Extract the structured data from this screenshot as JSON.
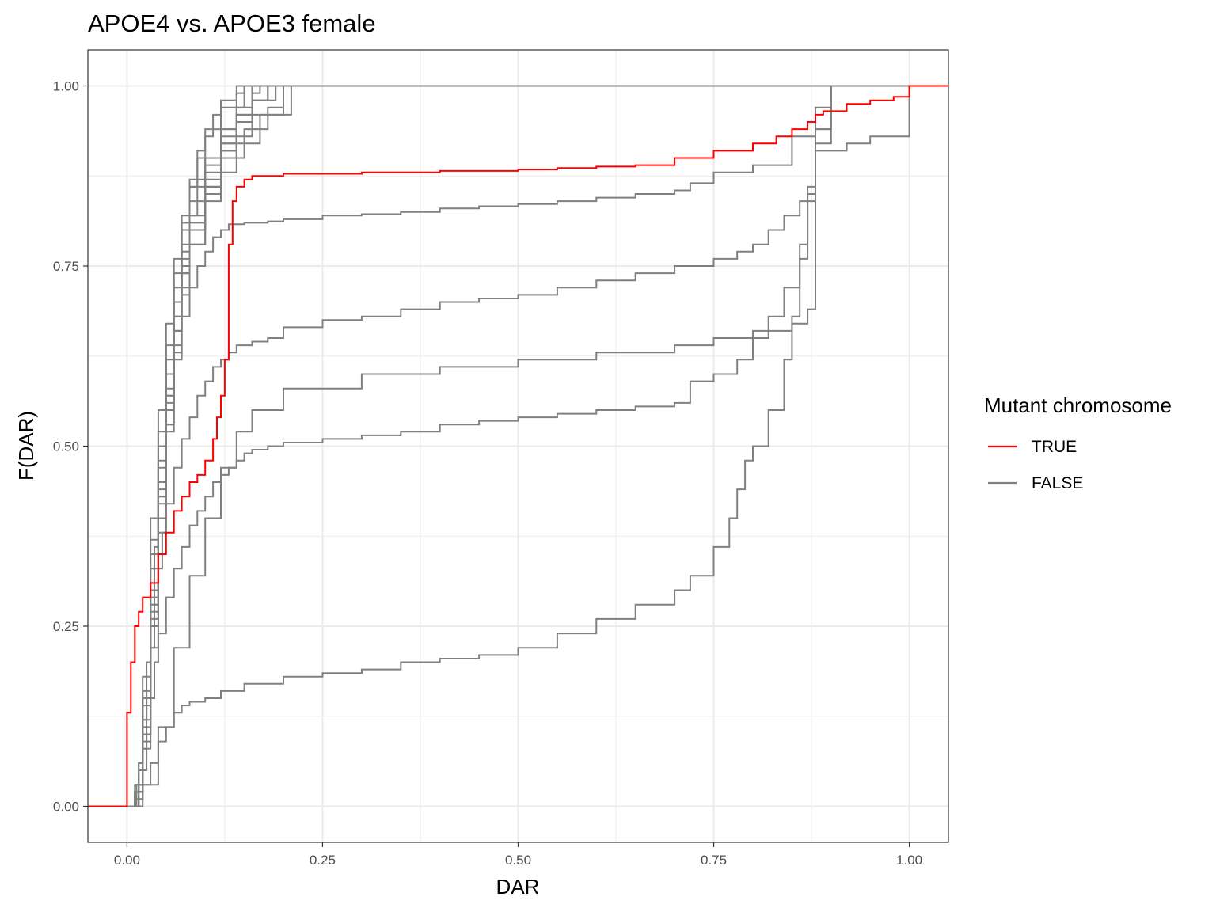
{
  "chart_data": {
    "type": "line",
    "step": true,
    "title": "APOE4 vs. APOE3 female",
    "xlabel": "DAR",
    "ylabel": "F(DAR)",
    "xlim": [
      -0.05,
      1.05
    ],
    "ylim": [
      -0.05,
      1.05
    ],
    "x_ticks": [
      0,
      0.25,
      0.5,
      0.75,
      1
    ],
    "x_tick_labels": [
      "0.00",
      "0.25",
      "0.50",
      "0.75",
      "1.00"
    ],
    "y_ticks": [
      0,
      0.25,
      0.5,
      0.75,
      1
    ],
    "y_tick_labels": [
      "0.00",
      "0.25",
      "0.50",
      "0.75",
      "1.00"
    ],
    "grid": true,
    "legend": {
      "title": "Mutant chromosome",
      "position": "right",
      "entries": [
        {
          "label": "TRUE",
          "color": "#ff0000"
        },
        {
          "label": "FALSE",
          "color": "#808080"
        }
      ]
    },
    "series": [
      {
        "group": "TRUE",
        "color": "#ff0000",
        "x": [
          -0.05,
          0.0,
          0.0,
          0.005,
          0.005,
          0.01,
          0.01,
          0.015,
          0.02,
          0.03,
          0.04,
          0.05,
          0.06,
          0.07,
          0.08,
          0.09,
          0.1,
          0.11,
          0.115,
          0.12,
          0.125,
          0.13,
          0.135,
          0.14,
          0.15,
          0.16,
          0.2,
          0.3,
          0.4,
          0.5,
          0.55,
          0.6,
          0.65,
          0.7,
          0.75,
          0.8,
          0.83,
          0.85,
          0.87,
          0.88,
          0.89,
          0.92,
          0.95,
          0.98,
          1.0,
          1.05
        ],
        "y": [
          0.0,
          0.0,
          0.13,
          0.13,
          0.2,
          0.22,
          0.25,
          0.27,
          0.29,
          0.31,
          0.35,
          0.38,
          0.41,
          0.43,
          0.45,
          0.46,
          0.48,
          0.51,
          0.54,
          0.57,
          0.62,
          0.78,
          0.84,
          0.86,
          0.87,
          0.875,
          0.878,
          0.88,
          0.882,
          0.884,
          0.886,
          0.888,
          0.89,
          0.9,
          0.91,
          0.92,
          0.93,
          0.94,
          0.95,
          0.96,
          0.965,
          0.975,
          0.98,
          0.985,
          1.0,
          1.0
        ]
      },
      {
        "group": "FALSE",
        "color": "#808080",
        "x": [
          -0.05,
          0.005,
          0.01,
          0.02,
          0.03,
          0.04,
          0.05,
          0.06,
          0.07,
          0.08,
          0.09,
          0.1,
          0.11,
          0.12,
          0.14,
          1.05
        ],
        "y": [
          0.0,
          0.0,
          0.02,
          0.15,
          0.35,
          0.5,
          0.62,
          0.72,
          0.8,
          0.86,
          0.9,
          0.93,
          0.96,
          0.98,
          1.0,
          1.0
        ]
      },
      {
        "group": "FALSE",
        "color": "#808080",
        "x": [
          -0.05,
          0.005,
          0.01,
          0.02,
          0.03,
          0.04,
          0.05,
          0.06,
          0.07,
          0.08,
          0.09,
          0.1,
          0.12,
          0.14,
          0.16,
          1.05
        ],
        "y": [
          0.0,
          0.0,
          0.01,
          0.1,
          0.28,
          0.44,
          0.57,
          0.68,
          0.76,
          0.82,
          0.87,
          0.9,
          0.94,
          0.97,
          1.0,
          1.0
        ]
      },
      {
        "group": "FALSE",
        "color": "#808080",
        "x": [
          -0.05,
          0.005,
          0.01,
          0.02,
          0.03,
          0.04,
          0.05,
          0.06,
          0.07,
          0.08,
          0.1,
          0.12,
          0.14,
          0.16,
          0.18,
          1.05
        ],
        "y": [
          0.0,
          0.0,
          0.02,
          0.12,
          0.3,
          0.47,
          0.6,
          0.7,
          0.77,
          0.82,
          0.88,
          0.92,
          0.95,
          0.98,
          1.0,
          1.0
        ]
      },
      {
        "group": "FALSE",
        "color": "#808080",
        "x": [
          -0.05,
          0.005,
          0.012,
          0.02,
          0.03,
          0.04,
          0.05,
          0.06,
          0.07,
          0.08,
          0.1,
          0.12,
          0.15,
          0.18,
          0.2,
          1.05
        ],
        "y": [
          0.0,
          0.0,
          0.03,
          0.1,
          0.25,
          0.4,
          0.53,
          0.64,
          0.72,
          0.78,
          0.85,
          0.9,
          0.94,
          0.97,
          1.0,
          1.0
        ]
      },
      {
        "group": "FALSE",
        "color": "#808080",
        "x": [
          -0.05,
          0.005,
          0.01,
          0.02,
          0.03,
          0.04,
          0.05,
          0.06,
          0.07,
          0.08,
          0.1,
          0.12,
          0.14,
          0.17,
          0.21,
          1.05
        ],
        "y": [
          0.0,
          0.0,
          0.02,
          0.08,
          0.22,
          0.38,
          0.52,
          0.63,
          0.71,
          0.78,
          0.84,
          0.88,
          0.92,
          0.96,
          1.0,
          1.0
        ]
      },
      {
        "group": "FALSE",
        "color": "#808080",
        "x": [
          -0.05,
          0.005,
          0.01,
          0.02,
          0.03,
          0.04,
          0.05,
          0.06,
          0.07,
          0.08,
          0.1,
          0.12,
          0.14,
          0.16,
          0.19,
          1.05
        ],
        "y": [
          0.0,
          0.0,
          0.01,
          0.14,
          0.33,
          0.48,
          0.6,
          0.7,
          0.78,
          0.84,
          0.89,
          0.93,
          0.96,
          0.98,
          1.0,
          1.0
        ]
      },
      {
        "group": "FALSE",
        "color": "#808080",
        "x": [
          -0.05,
          0.005,
          0.01,
          0.02,
          0.03,
          0.04,
          0.05,
          0.06,
          0.07,
          0.08,
          0.09,
          0.1,
          0.12,
          0.14,
          0.15,
          1.05
        ],
        "y": [
          0.0,
          0.0,
          0.03,
          0.18,
          0.4,
          0.55,
          0.67,
          0.76,
          0.82,
          0.87,
          0.91,
          0.94,
          0.97,
          0.99,
          1.0,
          1.0
        ]
      },
      {
        "group": "FALSE",
        "color": "#808080",
        "x": [
          -0.05,
          0.005,
          0.012,
          0.02,
          0.03,
          0.04,
          0.05,
          0.06,
          0.07,
          0.08,
          0.1,
          0.12,
          0.14,
          0.16,
          0.18,
          1.05
        ],
        "y": [
          0.0,
          0.0,
          0.02,
          0.09,
          0.26,
          0.42,
          0.55,
          0.66,
          0.74,
          0.8,
          0.86,
          0.91,
          0.95,
          0.98,
          1.0,
          1.0
        ]
      },
      {
        "group": "FALSE",
        "color": "#808080",
        "x": [
          -0.05,
          0.005,
          0.01,
          0.02,
          0.03,
          0.04,
          0.05,
          0.06,
          0.07,
          0.08,
          0.1,
          0.12,
          0.14,
          0.16,
          0.17,
          1.05
        ],
        "y": [
          0.0,
          0.0,
          0.02,
          0.11,
          0.29,
          0.45,
          0.58,
          0.68,
          0.75,
          0.81,
          0.87,
          0.92,
          0.96,
          0.99,
          1.0,
          1.0
        ]
      },
      {
        "group": "FALSE",
        "color": "#808080",
        "x": [
          -0.05,
          0.005,
          0.01,
          0.02,
          0.03,
          0.04,
          0.05,
          0.06,
          0.07,
          0.08,
          0.1,
          0.12,
          0.14,
          0.16,
          0.2,
          1.05
        ],
        "y": [
          0.0,
          0.0,
          0.02,
          0.1,
          0.27,
          0.43,
          0.56,
          0.66,
          0.74,
          0.8,
          0.86,
          0.9,
          0.93,
          0.96,
          1.0,
          1.0
        ]
      },
      {
        "group": "FALSE",
        "color": "#808080",
        "x": [
          -0.05,
          0.008,
          0.015,
          0.02,
          0.03,
          0.04,
          0.05,
          0.06,
          0.07,
          0.08,
          0.1,
          0.12,
          0.14,
          0.15,
          1.05
        ],
        "y": [
          0.0,
          0.0,
          0.05,
          0.16,
          0.37,
          0.52,
          0.64,
          0.74,
          0.81,
          0.86,
          0.9,
          0.94,
          0.97,
          1.0,
          1.0
        ]
      },
      {
        "group": "FALSE",
        "color": "#808080",
        "x": [
          -0.05,
          0.005,
          0.01,
          0.015,
          0.02,
          0.03,
          0.04,
          0.05,
          0.06,
          0.07,
          0.08,
          0.1,
          0.12,
          0.14,
          0.16,
          1.05
        ],
        "y": [
          0.0,
          0.0,
          0.02,
          0.06,
          0.15,
          0.3,
          0.45,
          0.57,
          0.66,
          0.74,
          0.8,
          0.86,
          0.91,
          0.95,
          1.0,
          1.0
        ]
      },
      {
        "group": "FALSE",
        "color": "#808080",
        "x": [
          -0.05,
          0.005,
          0.01,
          0.015,
          0.02,
          0.025,
          0.03,
          0.035,
          0.04,
          0.05,
          0.06,
          0.07,
          0.08,
          0.09,
          0.1,
          0.11,
          0.12,
          0.13,
          0.15,
          0.18,
          0.2,
          0.25,
          0.3,
          0.35,
          0.4,
          0.45,
          0.5,
          0.55,
          0.6,
          0.65,
          0.7,
          0.72,
          0.75,
          0.8,
          0.85,
          0.88,
          0.9,
          1.05
        ],
        "y": [
          0.0,
          0.0,
          0.02,
          0.06,
          0.12,
          0.2,
          0.28,
          0.36,
          0.43,
          0.53,
          0.62,
          0.68,
          0.72,
          0.75,
          0.77,
          0.79,
          0.8,
          0.808,
          0.81,
          0.812,
          0.815,
          0.82,
          0.822,
          0.825,
          0.83,
          0.833,
          0.836,
          0.84,
          0.845,
          0.85,
          0.855,
          0.865,
          0.88,
          0.89,
          0.93,
          0.97,
          1.0,
          1.0
        ]
      },
      {
        "group": "FALSE",
        "color": "#808080",
        "x": [
          -0.05,
          0.01,
          0.015,
          0.02,
          0.025,
          0.03,
          0.035,
          0.04,
          0.045,
          0.05,
          0.06,
          0.07,
          0.08,
          0.09,
          0.1,
          0.11,
          0.12,
          0.13,
          0.14,
          0.16,
          0.18,
          0.2,
          0.25,
          0.3,
          0.35,
          0.4,
          0.45,
          0.5,
          0.55,
          0.6,
          0.65,
          0.7,
          0.75,
          0.78,
          0.8,
          0.82,
          0.84,
          0.86,
          0.87,
          0.88,
          0.9,
          1.05
        ],
        "y": [
          0.0,
          0.0,
          0.03,
          0.08,
          0.15,
          0.22,
          0.28,
          0.33,
          0.38,
          0.42,
          0.47,
          0.51,
          0.54,
          0.57,
          0.59,
          0.61,
          0.62,
          0.63,
          0.64,
          0.645,
          0.65,
          0.665,
          0.675,
          0.68,
          0.69,
          0.7,
          0.705,
          0.71,
          0.72,
          0.73,
          0.74,
          0.75,
          0.76,
          0.77,
          0.78,
          0.8,
          0.82,
          0.84,
          0.86,
          0.94,
          1.0,
          1.0
        ]
      },
      {
        "group": "FALSE",
        "color": "#808080",
        "x": [
          -0.05,
          0.01,
          0.015,
          0.02,
          0.025,
          0.03,
          0.035,
          0.04,
          0.05,
          0.06,
          0.07,
          0.08,
          0.09,
          0.1,
          0.11,
          0.12,
          0.13,
          0.14,
          0.15,
          0.16,
          0.18,
          0.2,
          0.25,
          0.3,
          0.35,
          0.4,
          0.45,
          0.5,
          0.55,
          0.6,
          0.65,
          0.7,
          0.72,
          0.75,
          0.78,
          0.8,
          0.82,
          0.84,
          0.86,
          0.87,
          0.88,
          0.9,
          1.05
        ],
        "y": [
          0.0,
          0.0,
          0.02,
          0.05,
          0.1,
          0.15,
          0.2,
          0.24,
          0.29,
          0.33,
          0.36,
          0.39,
          0.41,
          0.43,
          0.45,
          0.46,
          0.47,
          0.48,
          0.49,
          0.495,
          0.5,
          0.505,
          0.51,
          0.515,
          0.52,
          0.53,
          0.535,
          0.54,
          0.545,
          0.55,
          0.555,
          0.56,
          0.59,
          0.6,
          0.62,
          0.65,
          0.68,
          0.72,
          0.78,
          0.85,
          0.92,
          1.0,
          1.0
        ]
      },
      {
        "group": "FALSE",
        "color": "#808080",
        "x": [
          -0.05,
          0.01,
          0.015,
          0.02,
          0.03,
          0.04,
          0.05,
          0.06,
          0.07,
          0.08,
          0.1,
          0.12,
          0.15,
          0.2,
          0.25,
          0.3,
          0.35,
          0.4,
          0.45,
          0.5,
          0.55,
          0.6,
          0.65,
          0.7,
          0.72,
          0.75,
          0.77,
          0.78,
          0.79,
          0.8,
          0.82,
          0.84,
          0.85,
          0.86,
          0.87,
          0.88,
          0.9,
          1.05
        ],
        "y": [
          0.0,
          0.0,
          0.01,
          0.03,
          0.06,
          0.09,
          0.11,
          0.13,
          0.14,
          0.145,
          0.15,
          0.16,
          0.17,
          0.18,
          0.185,
          0.19,
          0.2,
          0.205,
          0.21,
          0.22,
          0.24,
          0.26,
          0.28,
          0.3,
          0.32,
          0.36,
          0.4,
          0.44,
          0.48,
          0.5,
          0.55,
          0.62,
          0.68,
          0.76,
          0.84,
          0.94,
          1.0,
          1.0
        ]
      },
      {
        "group": "FALSE",
        "color": "#808080",
        "x": [
          -0.05,
          0.01,
          0.02,
          0.04,
          0.06,
          0.08,
          0.1,
          0.12,
          0.14,
          0.16,
          0.2,
          0.3,
          0.4,
          0.5,
          0.6,
          0.7,
          0.75,
          0.8,
          0.85,
          0.87,
          0.88,
          0.9,
          0.92,
          0.95,
          0.97,
          1.0,
          1.0,
          1.05
        ],
        "y": [
          0.0,
          0.0,
          0.03,
          0.11,
          0.22,
          0.32,
          0.4,
          0.47,
          0.52,
          0.55,
          0.58,
          0.6,
          0.61,
          0.62,
          0.63,
          0.64,
          0.65,
          0.66,
          0.67,
          0.69,
          0.91,
          0.91,
          0.92,
          0.93,
          0.93,
          0.94,
          1.0,
          1.0
        ]
      }
    ]
  }
}
